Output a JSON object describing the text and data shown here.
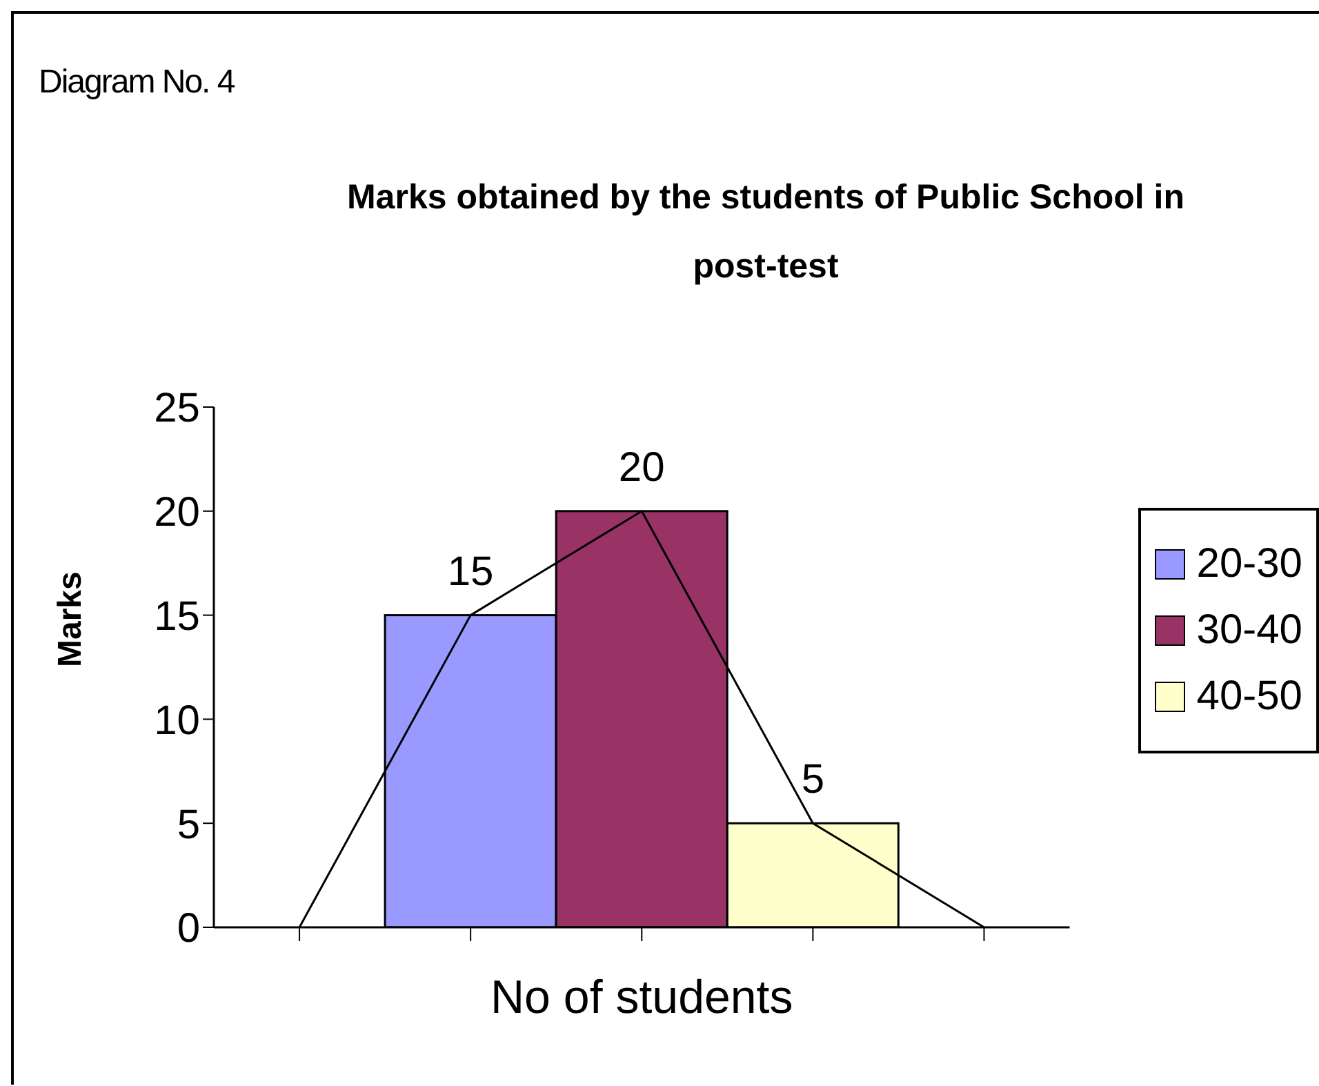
{
  "chart_data": {
    "type": "bar",
    "title": "Marks obtained  by the students of Public School in post-test",
    "annotations": [
      "Diagram No. 4"
    ],
    "xlabel": "No of students",
    "ylabel": "Marks",
    "categories": [
      null,
      null,
      null,
      null,
      null
    ],
    "stacked": true,
    "series": [
      {
        "name": "20-30",
        "color": "#9999ff",
        "values": [
          null,
          15,
          null,
          null,
          null
        ],
        "value_labels": [
          null,
          "15",
          null,
          null,
          null
        ]
      },
      {
        "name": "30-40",
        "color": "#993366",
        "values": [
          null,
          null,
          20,
          null,
          null
        ],
        "value_labels": [
          null,
          null,
          "20",
          null,
          null
        ]
      },
      {
        "name": "40-50",
        "color": "#ffffcc",
        "values": [
          null,
          null,
          null,
          5,
          null
        ],
        "value_labels": [
          null,
          null,
          null,
          "5",
          null
        ]
      },
      {
        "type": "line",
        "color": "#000000",
        "values": [
          0,
          15,
          20,
          5,
          0
        ]
      }
    ],
    "ylim": [
      0,
      25
    ],
    "yticks": [
      0,
      5,
      10,
      15,
      20,
      25
    ],
    "grid": false,
    "legend": "right",
    "marker": "none"
  }
}
